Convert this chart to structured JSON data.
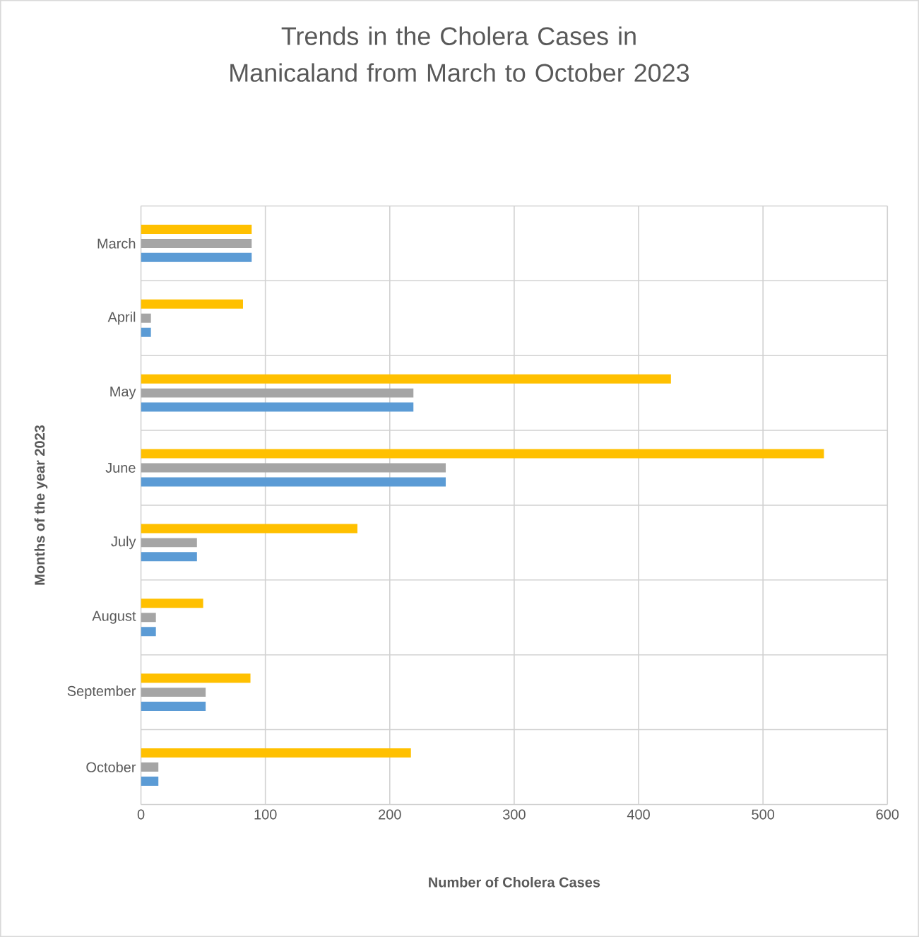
{
  "chart_data": {
    "type": "bar",
    "orientation": "horizontal",
    "title": "Trends in the Cholera Cases in Manicaland from March to October 2023",
    "xlabel": "Number of Cholera Cases",
    "ylabel": "Months of the year 2023",
    "categories": [
      "March",
      "April",
      "May",
      "June",
      "July",
      "August",
      "September",
      "October"
    ],
    "series": [
      {
        "color": "#5b9bd5",
        "values": [
          89,
          8,
          219,
          245,
          45,
          12,
          52,
          14
        ]
      },
      {
        "color": "#a5a5a5",
        "values": [
          89,
          8,
          219,
          245,
          45,
          12,
          52,
          14
        ]
      },
      {
        "color": "#ffc000",
        "values": [
          89,
          82,
          426,
          549,
          174,
          50,
          88,
          217
        ]
      }
    ],
    "xlim": [
      0,
      600
    ],
    "xticks": [
      0,
      100,
      200,
      300,
      400,
      500,
      600
    ],
    "grid": true
  }
}
